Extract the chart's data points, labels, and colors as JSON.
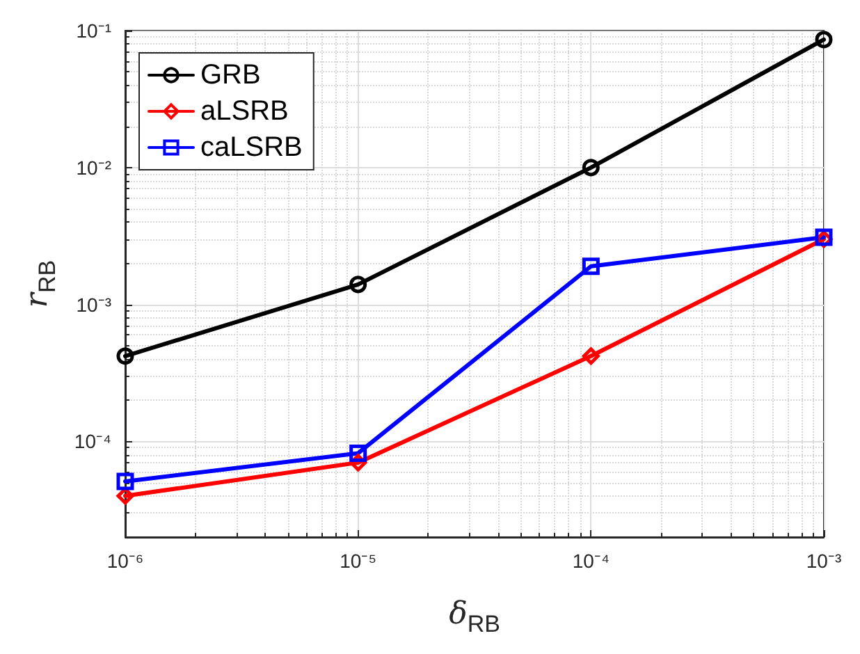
{
  "chart_data": {
    "type": "line",
    "xlabel": "δ$_{RB}$",
    "ylabel": "r$_{RB}$",
    "log": "xy",
    "grid": true,
    "legend": "top left",
    "line_style": "solid",
    "x": [
      1e-06,
      1e-05,
      0.0001,
      0.001
    ],
    "xlim": [
      1e-06,
      0.001
    ],
    "ylim": [
      2e-05,
      0.1
    ],
    "xticks": [
      {
        "value": 1e-06,
        "label": "10⁻⁶"
      },
      {
        "value": 1e-05,
        "label": "10⁻⁵"
      },
      {
        "value": 0.0001,
        "label": "10⁻⁴"
      },
      {
        "value": 0.001,
        "label": "10⁻³"
      }
    ],
    "yticks": [
      {
        "value": 0.0001,
        "label": "10⁻⁴"
      },
      {
        "value": 0.001,
        "label": "10⁻³"
      },
      {
        "value": 0.01,
        "label": "10⁻²"
      },
      {
        "value": 0.1,
        "label": "10⁻¹"
      }
    ],
    "series": [
      {
        "name": "GRB",
        "color": "#000000",
        "marker": "circle",
        "values": [
          0.00042,
          0.0014,
          0.01,
          0.086
        ]
      },
      {
        "name": "aLSRB",
        "color": "#ff0000",
        "marker": "diamond",
        "values": [
          4e-05,
          7e-05,
          0.00042,
          0.003
        ]
      },
      {
        "name": "caLSRB",
        "color": "#0000ff",
        "marker": "square",
        "values": [
          5.1e-05,
          8.2e-05,
          0.0019,
          0.0031
        ]
      }
    ]
  }
}
